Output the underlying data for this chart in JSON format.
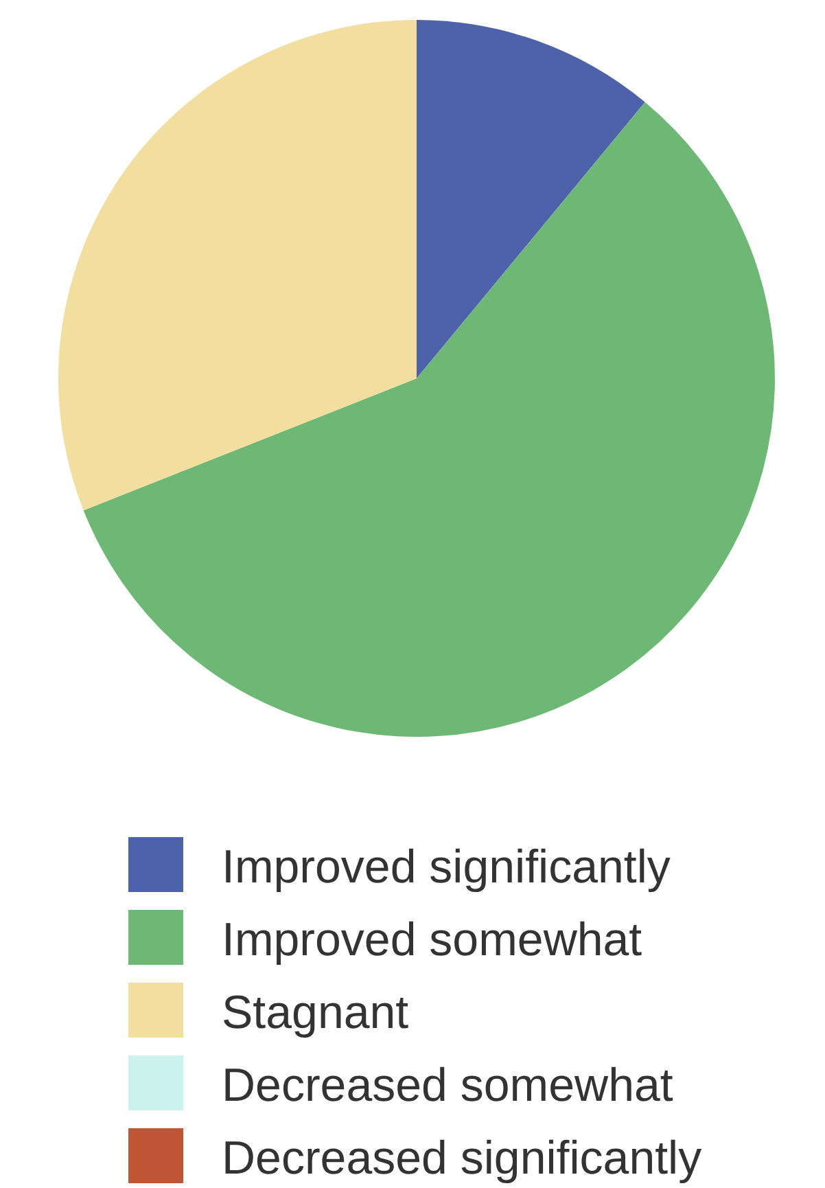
{
  "chart_data": {
    "type": "pie",
    "categories": [
      "Improved significantly",
      "Improved somewhat",
      "Stagnant",
      "Decreased somewhat",
      "Decreased significantly"
    ],
    "values": [
      11,
      58,
      31,
      0,
      0
    ],
    "colors": [
      "#4d62aa",
      "#6cb874",
      "#f2de9f",
      "#ccf2ee",
      "#c05535"
    ],
    "legend": "bottom"
  }
}
